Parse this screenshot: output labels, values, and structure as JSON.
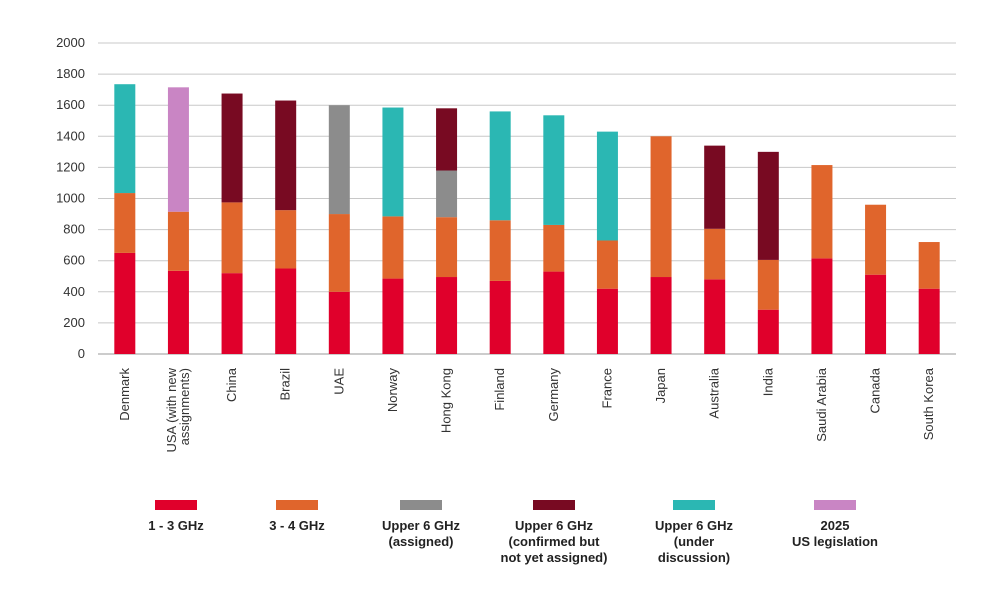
{
  "chart_data": {
    "type": "bar",
    "stacked": true,
    "title": "",
    "xlabel": "",
    "ylabel": "",
    "ylim": [
      0,
      2000
    ],
    "yticks": [
      0,
      200,
      400,
      600,
      800,
      1000,
      1200,
      1400,
      1600,
      1800,
      2000
    ],
    "grid": "horizontal",
    "legend_position": "bottom",
    "categories": [
      "Denmark",
      "USA (with new\nassignments)",
      "China",
      "Brazil",
      "UAE",
      "Norway",
      "Hong Kong",
      "Finland",
      "Germany",
      "France",
      "Japan",
      "Australia",
      "India",
      "Saudi Arabia",
      "Canada",
      "South Korea"
    ],
    "series": [
      {
        "name": "1 - 3 GHz",
        "color": "#e0002b",
        "values": [
          650,
          535,
          520,
          550,
          400,
          485,
          495,
          470,
          530,
          420,
          495,
          480,
          285,
          615,
          510,
          420
        ]
      },
      {
        "name": "3 - 4 GHz",
        "color": "#e0652c",
        "values": [
          385,
          380,
          455,
          375,
          500,
          400,
          385,
          390,
          300,
          310,
          905,
          325,
          320,
          600,
          450,
          300
        ]
      },
      {
        "name": "Upper 6 GHz\n(assigned)",
        "color": "#8c8c8c",
        "values": [
          0,
          0,
          0,
          0,
          700,
          0,
          300,
          0,
          0,
          0,
          0,
          0,
          0,
          0,
          0,
          0
        ]
      },
      {
        "name": "Upper 6 GHz\n(confirmed but\nnot yet assigned)",
        "color": "#780a22",
        "values": [
          0,
          0,
          700,
          705,
          0,
          0,
          400,
          0,
          0,
          0,
          0,
          535,
          695,
          0,
          0,
          0
        ]
      },
      {
        "name": "Upper 6 GHz\n(under\ndiscussion)",
        "color": "#2bb7b3",
        "values": [
          700,
          0,
          0,
          0,
          0,
          700,
          0,
          700,
          705,
          700,
          0,
          0,
          0,
          0,
          0,
          0
        ]
      },
      {
        "name": "2025\nUS legislation",
        "color": "#c985c4",
        "values": [
          0,
          800,
          0,
          0,
          0,
          0,
          0,
          0,
          0,
          0,
          0,
          0,
          0,
          0,
          0,
          0
        ]
      }
    ]
  }
}
